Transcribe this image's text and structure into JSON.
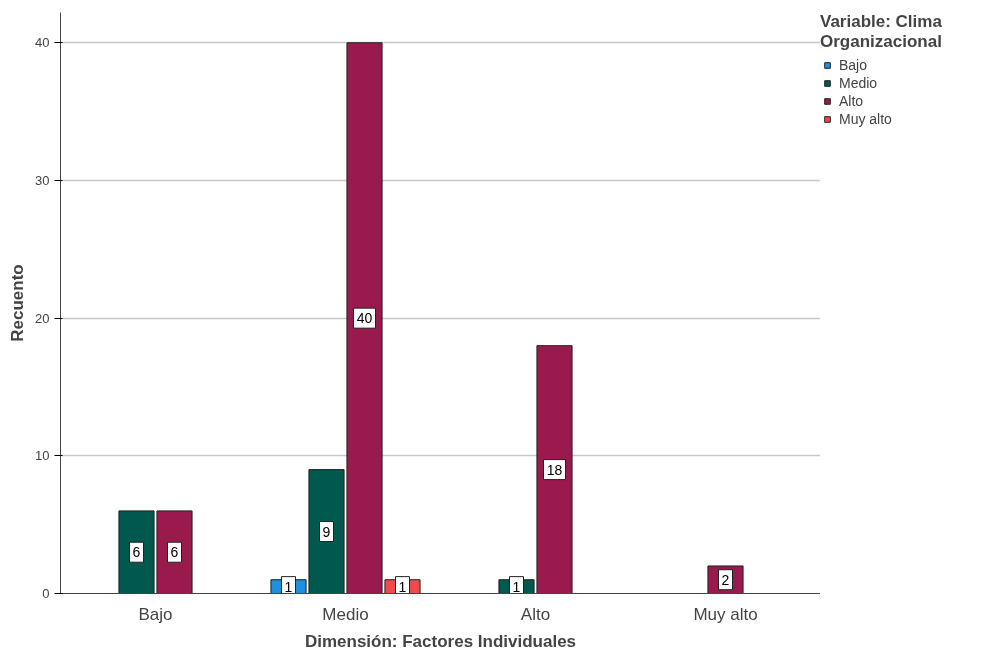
{
  "chart_data": {
    "type": "bar",
    "xlabel": "Dimensión: Factores Individuales",
    "ylabel": "Recuento",
    "legend_title": "Variable: Clima Organizacional",
    "categories": [
      "Bajo",
      "Medio",
      "Alto",
      "Muy alto"
    ],
    "series": [
      {
        "name": "Bajo",
        "color": "#1f8fe0",
        "values": [
          null,
          1,
          null,
          null
        ]
      },
      {
        "name": "Medio",
        "color": "#00584f",
        "values": [
          6,
          9,
          1,
          null
        ]
      },
      {
        "name": "Alto",
        "color": "#9b1a4e",
        "values": [
          6,
          40,
          18,
          2
        ]
      },
      {
        "name": "Muy alto",
        "color": "#f04b4b",
        "values": [
          null,
          1,
          null,
          null
        ]
      }
    ],
    "ylim": [
      0,
      42.2
    ],
    "yticks": [
      0,
      10,
      20,
      30,
      40
    ],
    "grid": "y",
    "legend": "top right",
    "data_labels": true
  }
}
